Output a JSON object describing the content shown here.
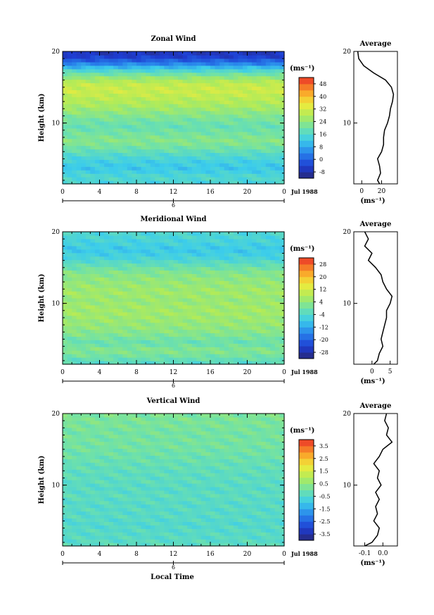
{
  "figure": {
    "xlabel_bottom": "Local Time",
    "date_label": "Jul 1988",
    "date_axis_tick": "6",
    "unit_label": "(ms⁻¹)"
  },
  "chart_data": [
    {
      "type": "heatmap",
      "title": "Zonal Wind",
      "xlabel": "",
      "ylabel": "Height (km)",
      "xlim": [
        0,
        24
      ],
      "ylim": [
        1.5,
        20
      ],
      "xticks": [
        "0",
        "4",
        "8",
        "12",
        "16",
        "20",
        "0"
      ],
      "yticks": [
        "10",
        "20"
      ],
      "colorbar": {
        "unit": "(ms⁻¹)",
        "ticks": [
          -8,
          0,
          8,
          16,
          24,
          32,
          40,
          48
        ],
        "tick_labels": [
          "-8",
          "0",
          "8",
          "16",
          "24",
          "32",
          "40",
          "48"
        ],
        "range": [
          -12,
          52
        ]
      },
      "heights_km": [
        1.5,
        2.5,
        3.5,
        4.5,
        5.5,
        6.5,
        7.5,
        8.5,
        9.5,
        10.5,
        11.5,
        12.5,
        13.5,
        14.5,
        15.5,
        16.5,
        17.5,
        18.5,
        19.5
      ],
      "mean_values": [
        14,
        16,
        12,
        13,
        16,
        20,
        23,
        21,
        19,
        21,
        24,
        27,
        29,
        31,
        30,
        24,
        14,
        2,
        -6
      ],
      "average_profile": {
        "title": "Average",
        "xlabel": "(ms⁻¹)",
        "xticks": [
          "0",
          "20"
        ],
        "xlim": [
          -8,
          36
        ],
        "heights_km": [
          1.5,
          2,
          3,
          4,
          5,
          6,
          7,
          8,
          9,
          10,
          11,
          12,
          13,
          14,
          15,
          16,
          17,
          18,
          19,
          20
        ],
        "values": [
          18,
          16,
          19,
          18,
          16,
          20,
          22,
          22,
          23,
          26,
          28,
          29,
          31,
          32,
          30,
          24,
          12,
          2,
          -3,
          -4
        ]
      }
    },
    {
      "type": "heatmap",
      "title": "Meridional Wind",
      "xlabel": "",
      "ylabel": "Height (km)",
      "xlim": [
        0,
        24
      ],
      "ylim": [
        1.5,
        20
      ],
      "xticks": [
        "0",
        "4",
        "8",
        "12",
        "16",
        "20",
        "0"
      ],
      "yticks": [
        "10",
        "20"
      ],
      "colorbar": {
        "unit": "(ms⁻¹)",
        "ticks": [
          -28,
          -20,
          -12,
          -4,
          4,
          12,
          20,
          28
        ],
        "tick_labels": [
          "-28",
          "-20",
          "-12",
          "-4",
          "4",
          "12",
          "20",
          "28"
        ],
        "range": [
          -32,
          32
        ]
      },
      "heights_km": [
        1.5,
        2.5,
        3.5,
        4.5,
        5.5,
        6.5,
        7.5,
        8.5,
        9.5,
        10.5,
        11.5,
        12.5,
        13.5,
        14.5,
        15.5,
        16.5,
        17.5,
        18.5,
        19.5
      ],
      "mean_values": [
        -4,
        0,
        3,
        -1,
        2,
        4,
        5,
        6,
        6,
        5,
        6,
        5,
        4,
        2,
        -2,
        -6,
        -8,
        -6,
        -5
      ],
      "average_profile": {
        "title": "Average",
        "xlabel": "(ms⁻¹)",
        "xticks": [
          "0",
          "5"
        ],
        "xlim": [
          -5,
          7
        ],
        "heights_km": [
          1.5,
          2,
          3,
          4,
          5,
          6,
          7,
          8,
          9,
          10,
          11,
          12,
          13,
          14,
          15,
          16,
          17,
          18,
          19,
          20
        ],
        "values": [
          0.5,
          1.5,
          2,
          3,
          2.5,
          3,
          3.5,
          4,
          4,
          5,
          5.5,
          4,
          3,
          2.5,
          1,
          -1,
          0,
          -2,
          -1,
          -2
        ]
      }
    },
    {
      "type": "heatmap",
      "title": "Vertical Wind",
      "xlabel": "Local Time",
      "ylabel": "Height (km)",
      "xlim": [
        0,
        24
      ],
      "ylim": [
        1.5,
        20
      ],
      "xticks": [
        "0",
        "4",
        "8",
        "12",
        "16",
        "20",
        "0"
      ],
      "yticks": [
        "10",
        "20"
      ],
      "colorbar": {
        "unit": "(ms⁻¹)",
        "ticks": [
          -3.5,
          -2.5,
          -1.5,
          -0.5,
          0.5,
          1.5,
          2.5,
          3.5
        ],
        "tick_labels": [
          "-3.5",
          "-2.5",
          "-1.5",
          "-0.5",
          "0.5",
          "1.5",
          "2.5",
          "3.5"
        ],
        "range": [
          -4,
          4
        ]
      },
      "heights_km": [
        1.5,
        2.5,
        3.5,
        4.5,
        5.5,
        6.5,
        7.5,
        8.5,
        9.5,
        10.5,
        11.5,
        12.5,
        13.5,
        14.5,
        15.5,
        16.5,
        17.5,
        18.5,
        19.5
      ],
      "mean_values": [
        -0.3,
        -0.4,
        -0.4,
        -0.5,
        -0.4,
        -0.4,
        -0.4,
        -0.3,
        -0.4,
        -0.3,
        -0.3,
        -0.2,
        -0.1,
        0.0,
        0.1,
        0.1,
        0.1,
        0.2,
        0.2
      ],
      "average_profile": {
        "title": "Average",
        "xlabel": "(ms⁻¹)",
        "xticks": [
          "-0.1",
          "0.0"
        ],
        "xlim": [
          -0.16,
          0.08
        ],
        "heights_km": [
          1.5,
          2,
          3,
          4,
          5,
          6,
          7,
          8,
          9,
          10,
          11,
          12,
          13,
          14,
          15,
          16,
          17,
          18,
          19,
          20
        ],
        "values": [
          -0.1,
          -0.06,
          -0.03,
          -0.02,
          -0.05,
          -0.03,
          -0.04,
          -0.02,
          -0.04,
          -0.01,
          -0.03,
          -0.02,
          -0.05,
          -0.02,
          0.0,
          0.05,
          0.02,
          0.03,
          0.01,
          0.02
        ]
      }
    }
  ]
}
